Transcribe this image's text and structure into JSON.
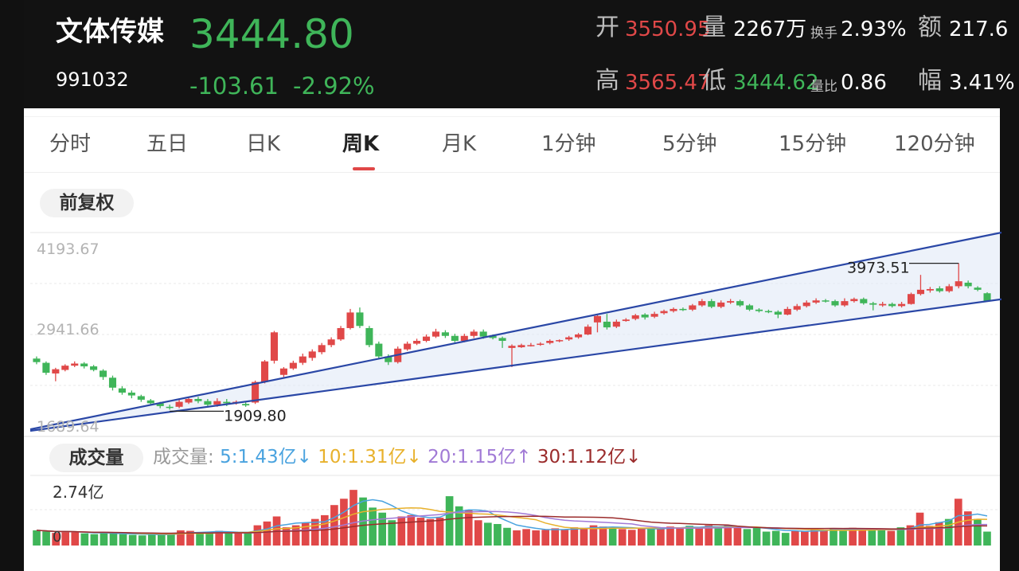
{
  "header": {
    "name": "文体传媒",
    "code": "991032",
    "price": "3444.80",
    "change": "-103.61",
    "change_pct": "-2.92%",
    "open_label": "开",
    "open_value": "3550.95",
    "volume_label": "量",
    "volume_value": "2267万",
    "turnover_label": "换手",
    "turnover_value": "2.93%",
    "amount_label": "额",
    "amount_value": "217.6",
    "high_label": "高",
    "high_value": "3565.47",
    "low_label": "低",
    "low_value": "3444.62",
    "vol_ratio_label": "量比",
    "vol_ratio_value": "0.86",
    "amplitude_label": "幅",
    "amplitude_value": "3.41%"
  },
  "tabs": [
    {
      "label": "分时"
    },
    {
      "label": "五日"
    },
    {
      "label": "日K"
    },
    {
      "label": "周K",
      "active": true
    },
    {
      "label": "月K"
    },
    {
      "label": "1分钟"
    },
    {
      "label": "5分钟"
    },
    {
      "label": "15分钟"
    },
    {
      "label": "120分钟"
    }
  ],
  "adjust_label": "前复权",
  "volume_section": {
    "label": "成交量",
    "legend_title": "成交量:",
    "ma5": "5:1.43亿",
    "ma10": "10:1.31亿",
    "ma20": "20:1.15亿",
    "ma30": "30:1.12亿",
    "ma5_arrow": "↓",
    "ma10_arrow": "↓",
    "ma20_arrow": "↑",
    "ma30_arrow": "↓",
    "max_label": "2.74亿",
    "zero_label": "0"
  },
  "colors": {
    "up": "#e04848",
    "down": "#3fb559",
    "channel": "#2a47a6",
    "ma5": "#4aa3df",
    "ma10": "#e8b12c",
    "ma20": "#a17ad6",
    "ma30": "#9b2c2c"
  },
  "chart_data": {
    "type": "candlestick",
    "y_ticks": [
      "4193.67",
      "2941.66",
      "1689.64"
    ],
    "ylim": [
      1689.64,
      4193.67
    ],
    "annotations": {
      "high": "3973.51",
      "low": "1909.80"
    },
    "candles": [
      [
        2630,
        2580,
        2660,
        2550
      ],
      [
        2570,
        2430,
        2590,
        2400
      ],
      [
        2420,
        2480,
        2500,
        2310
      ],
      [
        2470,
        2530,
        2550,
        2450
      ],
      [
        2530,
        2560,
        2590,
        2510
      ],
      [
        2560,
        2520,
        2580,
        2490
      ],
      [
        2520,
        2470,
        2540,
        2450
      ],
      [
        2460,
        2370,
        2480,
        2330
      ],
      [
        2360,
        2220,
        2390,
        2180
      ],
      [
        2210,
        2150,
        2240,
        2120
      ],
      [
        2150,
        2110,
        2180,
        2070
      ],
      [
        2100,
        2050,
        2120,
        2020
      ],
      [
        2040,
        2000,
        2060,
        1970
      ],
      [
        2000,
        1960,
        2020,
        1930
      ],
      [
        1950,
        1940,
        1980,
        1910
      ],
      [
        1950,
        2020,
        2050,
        1930
      ],
      [
        2010,
        2060,
        2090,
        1990
      ],
      [
        2060,
        2030,
        2090,
        2000
      ],
      [
        2030,
        1980,
        2060,
        1960
      ],
      [
        1980,
        2030,
        2070,
        1950
      ],
      [
        2020,
        2000,
        2060,
        1960
      ],
      [
        2000,
        2020,
        2040,
        1980
      ],
      [
        1990,
        1970,
        2010,
        1950
      ],
      [
        2010,
        2300,
        2320,
        1990
      ],
      [
        2300,
        2590,
        2610,
        2280
      ],
      [
        2600,
        3000,
        3020,
        2560
      ],
      [
        2400,
        2490,
        2510,
        2370
      ],
      [
        2490,
        2570,
        2600,
        2470
      ],
      [
        2570,
        2660,
        2700,
        2540
      ],
      [
        2640,
        2730,
        2760,
        2600
      ],
      [
        2720,
        2820,
        2850,
        2690
      ],
      [
        2820,
        2900,
        2930,
        2790
      ],
      [
        2900,
        3060,
        3090,
        2880
      ],
      [
        3060,
        3280,
        3330,
        3040
      ],
      [
        3280,
        3090,
        3350,
        3060
      ],
      [
        3060,
        2820,
        3090,
        2790
      ],
      [
        2840,
        2660,
        2870,
        2620
      ],
      [
        2660,
        2580,
        2690,
        2540
      ],
      [
        2580,
        2770,
        2800,
        2560
      ],
      [
        2760,
        2840,
        2870,
        2740
      ],
      [
        2840,
        2880,
        2910,
        2820
      ],
      [
        2880,
        2940,
        2970,
        2860
      ],
      [
        2940,
        3010,
        3050,
        2920
      ],
      [
        3000,
        2950,
        3030,
        2920
      ],
      [
        2950,
        2880,
        2980,
        2860
      ],
      [
        2880,
        2950,
        2980,
        2860
      ],
      [
        2950,
        3010,
        3040,
        2920
      ],
      [
        3010,
        2940,
        3040,
        2910
      ],
      [
        2950,
        2920,
        2970,
        2900
      ],
      [
        2920,
        2880,
        2940,
        2780
      ],
      [
        2780,
        2810,
        2830,
        2510
      ],
      [
        2790,
        2820,
        2840,
        2780
      ],
      [
        2820,
        2820,
        2850,
        2800
      ],
      [
        2830,
        2840,
        2860,
        2810
      ],
      [
        2850,
        2880,
        2900,
        2830
      ],
      [
        2880,
        2890,
        2900,
        2860
      ],
      [
        2900,
        2930,
        2950,
        2880
      ],
      [
        2930,
        2970,
        2990,
        2910
      ],
      [
        2970,
        3080,
        3110,
        2960
      ],
      [
        3140,
        3230,
        3250,
        3000
      ],
      [
        3150,
        3070,
        3260,
        3040
      ],
      [
        3080,
        3150,
        3180,
        3060
      ],
      [
        3160,
        3180,
        3200,
        3150
      ],
      [
        3190,
        3240,
        3260,
        3170
      ],
      [
        3250,
        3210,
        3270,
        3180
      ],
      [
        3220,
        3260,
        3290,
        3200
      ],
      [
        3270,
        3300,
        3320,
        3250
      ],
      [
        3300,
        3330,
        3350,
        3280
      ],
      [
        3330,
        3320,
        3350,
        3300
      ],
      [
        3320,
        3380,
        3400,
        3300
      ],
      [
        3380,
        3440,
        3470,
        3360
      ],
      [
        3440,
        3360,
        3470,
        3340
      ],
      [
        3360,
        3420,
        3450,
        3340
      ],
      [
        3420,
        3440,
        3470,
        3400
      ],
      [
        3440,
        3380,
        3460,
        3360
      ],
      [
        3380,
        3320,
        3400,
        3300
      ],
      [
        3320,
        3300,
        3340,
        3280
      ],
      [
        3300,
        3290,
        3320,
        3270
      ],
      [
        3290,
        3250,
        3310,
        3200
      ],
      [
        3250,
        3330,
        3360,
        3240
      ],
      [
        3320,
        3370,
        3400,
        3300
      ],
      [
        3370,
        3420,
        3450,
        3350
      ],
      [
        3420,
        3450,
        3480,
        3400
      ],
      [
        3450,
        3440,
        3470,
        3420
      ],
      [
        3440,
        3380,
        3460,
        3360
      ],
      [
        3380,
        3440,
        3480,
        3360
      ],
      [
        3440,
        3470,
        3490,
        3420
      ],
      [
        3470,
        3410,
        3490,
        3390
      ],
      [
        3410,
        3390,
        3430,
        3310
      ],
      [
        3380,
        3400,
        3430,
        3360
      ],
      [
        3400,
        3370,
        3420,
        3350
      ],
      [
        3370,
        3400,
        3430,
        3350
      ],
      [
        3400,
        3540,
        3560,
        3390
      ],
      [
        3540,
        3600,
        3810,
        3520
      ],
      [
        3590,
        3610,
        3640,
        3560
      ],
      [
        3620,
        3580,
        3650,
        3560
      ],
      [
        3580,
        3650,
        3680,
        3560
      ],
      [
        3650,
        3720,
        3973.51,
        3620
      ],
      [
        3700,
        3650,
        3730,
        3620
      ],
      [
        3630,
        3600,
        3650,
        3580
      ],
      [
        3550.95,
        3444.8,
        3565.47,
        3444.62
      ]
    ],
    "channel": {
      "upper": [
        [
          0,
          1700
        ],
        [
          100,
          4193.67
        ]
      ],
      "lower": [
        [
          0,
          1689.64
        ],
        [
          100,
          3500
        ]
      ]
    },
    "volume": [
      0.6,
      0.56,
      0.5,
      0.56,
      0.52,
      0.48,
      0.45,
      0.5,
      0.48,
      0.45,
      0.42,
      0.4,
      0.45,
      0.42,
      0.48,
      0.6,
      0.58,
      0.52,
      0.5,
      0.58,
      0.55,
      0.48,
      0.5,
      0.8,
      0.95,
      1.15,
      0.72,
      0.8,
      0.9,
      1.05,
      1.2,
      1.6,
      1.85,
      2.2,
      1.9,
      1.5,
      1.3,
      1.0,
      1.15,
      1.2,
      1.1,
      1.05,
      1.1,
      1.95,
      1.55,
      1.4,
      1.0,
      0.9,
      0.85,
      0.7,
      0.6,
      0.65,
      0.6,
      0.62,
      0.68,
      0.62,
      0.72,
      0.7,
      0.8,
      0.75,
      0.7,
      0.65,
      0.62,
      0.66,
      0.7,
      0.68,
      0.75,
      0.72,
      0.78,
      0.68,
      0.8,
      0.72,
      0.8,
      0.7,
      0.65,
      0.7,
      0.55,
      0.58,
      0.5,
      0.6,
      0.55,
      0.65,
      0.62,
      0.68,
      0.58,
      0.7,
      0.62,
      0.6,
      0.65,
      0.58,
      0.72,
      0.8,
      1.3,
      0.78,
      0.92,
      1.05,
      1.85,
      1.35,
      1.05,
      0.55
    ],
    "volume_max": 2.74
  }
}
